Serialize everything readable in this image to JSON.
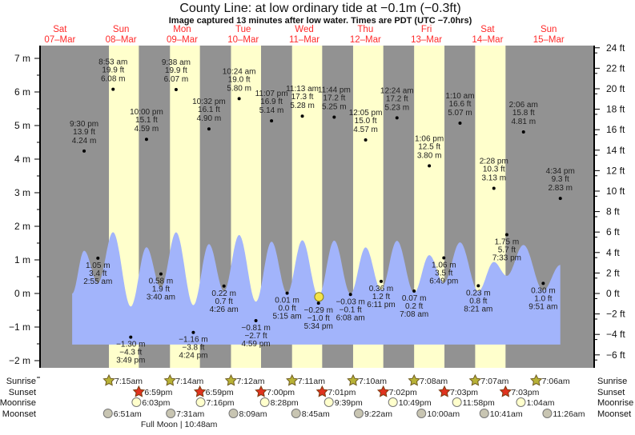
{
  "chart_data": {
    "type": "area",
    "title": "County Line: at low  ordinary tide at −0.1m (−0.3ft)",
    "subtitle": "Image captured 13 minutes after low water. Times are PDT (UTC −7.0hrs)",
    "days": [
      {
        "name": "Sat",
        "date": "07–Mar"
      },
      {
        "name": "Sun",
        "date": "08–Mar"
      },
      {
        "name": "Mon",
        "date": "09–Mar"
      },
      {
        "name": "Tue",
        "date": "10–Mar"
      },
      {
        "name": "Wed",
        "date": "11–Mar"
      },
      {
        "name": "Thu",
        "date": "12–Mar"
      },
      {
        "name": "Fri",
        "date": "13–Mar"
      },
      {
        "name": "Sat",
        "date": "14–Mar"
      },
      {
        "name": "Sun",
        "date": "15–Mar"
      }
    ],
    "y_left": {
      "unit": "m",
      "ylim": [
        -2.3,
        7.2
      ],
      "ticks": [
        "7 m",
        "6 m",
        "5 m",
        "4 m",
        "3 m",
        "2 m",
        "1 m",
        "0 m",
        "−1 m",
        "−2 m"
      ]
    },
    "y_right": {
      "unit": "ft",
      "ticks": [
        "24 ft",
        "22 ft",
        "20 ft",
        "18 ft",
        "16 ft",
        "14 ft",
        "12 ft",
        "10 ft",
        "8 ft",
        "6 ft",
        "4 ft",
        "2 ft",
        "0 ft",
        "−2 ft",
        "−4 ft",
        "−6 ft"
      ]
    },
    "current_level_m": -0.1,
    "current_time": {
      "day": 4,
      "time": "5:47 pm"
    },
    "colors": {
      "night": "#929292",
      "day": "#ffffcc",
      "water": "#a2b4fb",
      "day_label": "#ff2a2a",
      "current_marker": "#f3e34a"
    },
    "extremes": [
      {
        "day": 0,
        "type": "high",
        "time": "9:30 pm",
        "ft": "13.9 ft",
        "m": "4.24 m"
      },
      {
        "day": 1,
        "type": "low",
        "time": "2:55 am",
        "ft": "3.4 ft",
        "m": "1.05 m"
      },
      {
        "day": 1,
        "type": "high",
        "time": "8:53 am",
        "ft": "19.9 ft",
        "m": "6.08 m"
      },
      {
        "day": 1,
        "type": "low",
        "time": "3:49 pm",
        "ft": "−4.3 ft",
        "m": "−1.30 m"
      },
      {
        "day": 1,
        "type": "high",
        "time": "10:00 pm",
        "ft": "15.1 ft",
        "m": "4.59 m"
      },
      {
        "day": 2,
        "type": "low",
        "time": "3:40 am",
        "ft": "1.9 ft",
        "m": "0.58 m"
      },
      {
        "day": 2,
        "type": "high",
        "time": "9:38 am",
        "ft": "19.9 ft",
        "m": "6.07 m"
      },
      {
        "day": 2,
        "type": "low",
        "time": "4:24 pm",
        "ft": "−3.8 ft",
        "m": "−1.16 m"
      },
      {
        "day": 2,
        "type": "high",
        "time": "10:32 pm",
        "ft": "16.1 ft",
        "m": "4.90 m"
      },
      {
        "day": 3,
        "type": "low",
        "time": "4:26 am",
        "ft": "0.7 ft",
        "m": "0.22 m"
      },
      {
        "day": 3,
        "type": "high",
        "time": "10:24 am",
        "ft": "19.0 ft",
        "m": "5.80 m"
      },
      {
        "day": 3,
        "type": "low",
        "time": "4:59 pm",
        "ft": "−2.7 ft",
        "m": "−0.81 m"
      },
      {
        "day": 3,
        "type": "high",
        "time": "11:07 pm",
        "ft": "16.9 ft",
        "m": "5.14 m"
      },
      {
        "day": 4,
        "type": "low",
        "time": "5:15 am",
        "ft": "0.0 ft",
        "m": "0.01 m"
      },
      {
        "day": 4,
        "type": "high",
        "time": "11:13 am",
        "ft": "17.3 ft",
        "m": "5.28 m"
      },
      {
        "day": 4,
        "type": "low",
        "time": "5:34 pm",
        "ft": "−1.0 ft",
        "m": "−0.29 m"
      },
      {
        "day": 4,
        "type": "high",
        "time": "11:44 pm",
        "ft": "17.2 ft",
        "m": "5.25 m"
      },
      {
        "day": 5,
        "type": "low",
        "time": "6:08 am",
        "ft": "−0.1 ft",
        "m": "−0.03 m"
      },
      {
        "day": 5,
        "type": "high",
        "time": "12:05 pm",
        "ft": "15.0 ft",
        "m": "4.57 m"
      },
      {
        "day": 5,
        "type": "low",
        "time": "6:11 pm",
        "ft": "1.2 ft",
        "m": "0.36 m"
      },
      {
        "day": 6,
        "type": "high",
        "time": "12:24 am",
        "ft": "17.2 ft",
        "m": "5.23 m"
      },
      {
        "day": 6,
        "type": "low",
        "time": "7:08 am",
        "ft": "0.2 ft",
        "m": "0.07 m"
      },
      {
        "day": 6,
        "type": "high",
        "time": "1:06 pm",
        "ft": "12.5 ft",
        "m": "3.80 m"
      },
      {
        "day": 6,
        "type": "low",
        "time": "6:49 pm",
        "ft": "3.5 ft",
        "m": "1.06 m"
      },
      {
        "day": 7,
        "type": "high",
        "time": "1:10 am",
        "ft": "16.6 ft",
        "m": "5.07 m"
      },
      {
        "day": 7,
        "type": "low",
        "time": "8:21 am",
        "ft": "0.8 ft",
        "m": "0.23 m"
      },
      {
        "day": 7,
        "type": "high",
        "time": "2:28 pm",
        "ft": "10.3 ft",
        "m": "3.13 m"
      },
      {
        "day": 7,
        "type": "low",
        "time": "7:33 pm",
        "ft": "5.7 ft",
        "m": "1.75 m"
      },
      {
        "day": 8,
        "type": "high",
        "time": "2:06 am",
        "ft": "15.8 ft",
        "m": "4.81 m"
      },
      {
        "day": 8,
        "type": "low",
        "time": "9:51 am",
        "ft": "1.0 ft",
        "m": "0.30 m"
      },
      {
        "day": 8,
        "type": "high",
        "time": "4:34 pm",
        "ft": "9.3 ft",
        "m": "2.83 m"
      }
    ],
    "daylight": [
      {
        "day": 1,
        "rise": "7:15am",
        "set": "6:59pm"
      },
      {
        "day": 2,
        "rise": "7:14am",
        "set": "6:59pm"
      },
      {
        "day": 3,
        "rise": "7:12am",
        "set": "7:00pm"
      },
      {
        "day": 4,
        "rise": "7:11am",
        "set": "7:01pm"
      },
      {
        "day": 5,
        "rise": "7:10am",
        "set": "7:02pm"
      },
      {
        "day": 6,
        "rise": "7:08am",
        "set": "7:03pm"
      },
      {
        "day": 7,
        "rise": "7:07am",
        "set": "7:03pm"
      }
    ],
    "rows": {
      "labels": {
        "sunrise": "Sunrise",
        "sunset": "Sunset",
        "moonrise": "Moonrise",
        "moonset": "Moonset"
      },
      "sunrise": [
        {
          "day": 1,
          "time": "7:15am"
        },
        {
          "day": 2,
          "time": "7:14am"
        },
        {
          "day": 3,
          "time": "7:12am"
        },
        {
          "day": 4,
          "time": "7:11am"
        },
        {
          "day": 5,
          "time": "7:10am"
        },
        {
          "day": 6,
          "time": "7:08am"
        },
        {
          "day": 7,
          "time": "7:07am"
        },
        {
          "day": 8,
          "time": "7:06am"
        }
      ],
      "sunset": [
        {
          "day": 1,
          "time": "6:59pm"
        },
        {
          "day": 2,
          "time": "6:59pm"
        },
        {
          "day": 3,
          "time": "7:00pm"
        },
        {
          "day": 4,
          "time": "7:01pm"
        },
        {
          "day": 5,
          "time": "7:02pm"
        },
        {
          "day": 6,
          "time": "7:03pm"
        },
        {
          "day": 7,
          "time": "7:03pm"
        }
      ],
      "moonrise": [
        {
          "day": 1,
          "time": "6:03pm"
        },
        {
          "day": 2,
          "time": "7:16pm"
        },
        {
          "day": 3,
          "time": "8:28pm"
        },
        {
          "day": 4,
          "time": "9:39pm"
        },
        {
          "day": 5,
          "time": "10:49pm"
        },
        {
          "day": 6,
          "time": "11:58pm"
        },
        {
          "day": 8,
          "time": "1:04am"
        }
      ],
      "moonset": [
        {
          "day": 1,
          "time": "6:51am"
        },
        {
          "day": 2,
          "time": "7:31am"
        },
        {
          "day": 3,
          "time": "8:09am"
        },
        {
          "day": 4,
          "time": "8:45am"
        },
        {
          "day": 5,
          "time": "9:22am"
        },
        {
          "day": 6,
          "time": "10:00am"
        },
        {
          "day": 7,
          "time": "10:41am"
        },
        {
          "day": 8,
          "time": "11:26am"
        }
      ]
    },
    "moon_phase": {
      "day": 2,
      "time": "10:48am",
      "label": "Full Moon | 10:48am"
    }
  }
}
